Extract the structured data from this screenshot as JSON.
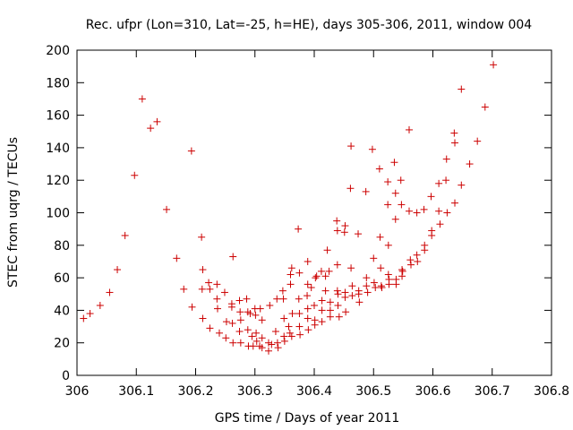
{
  "chart_data": {
    "type": "scatter",
    "title": "Rec. ufpr (Lon=310, Lat=-25, h=HE), days 305-306, 2011, window 004",
    "xlabel": "GPS time / Days of year 2011",
    "ylabel": "STEC from uqrg / TECUs",
    "xlim": [
      306,
      306.8
    ],
    "ylim": [
      0,
      200
    ],
    "xticks": [
      306,
      306.1,
      306.2,
      306.3,
      306.4,
      306.5,
      306.6,
      306.7,
      306.8
    ],
    "xtick_labels": [
      "306",
      "306.1",
      "306.2",
      "306.3",
      "306.4",
      "306.5",
      "306.6",
      "306.7",
      "306.8"
    ],
    "yticks": [
      0,
      20,
      40,
      60,
      80,
      100,
      120,
      140,
      160,
      180,
      200
    ],
    "ytick_labels": [
      "0",
      "20",
      "40",
      "60",
      "80",
      "100",
      "120",
      "140",
      "160",
      "180",
      "200"
    ],
    "grid": false,
    "marker": "+",
    "marker_color": "#cc0000",
    "series": [
      {
        "name": "",
        "points": [
          [
            306.011,
            35
          ],
          [
            306.022,
            38
          ],
          [
            306.039,
            43
          ],
          [
            306.055,
            51
          ],
          [
            306.068,
            65
          ],
          [
            306.081,
            86
          ],
          [
            306.097,
            123
          ],
          [
            306.11,
            170
          ],
          [
            306.124,
            152
          ],
          [
            306.135,
            156
          ],
          [
            306.151,
            102
          ],
          [
            306.168,
            72
          ],
          [
            306.18,
            53
          ],
          [
            306.194,
            42
          ],
          [
            306.193,
            138
          ],
          [
            306.21,
            85
          ],
          [
            306.212,
            65
          ],
          [
            306.211,
            53
          ],
          [
            306.212,
            35
          ],
          [
            306.222,
            57
          ],
          [
            306.224,
            29
          ],
          [
            306.224,
            53
          ],
          [
            306.236,
            56
          ],
          [
            306.236,
            47
          ],
          [
            306.237,
            41
          ],
          [
            306.24,
            26
          ],
          [
            306.249,
            51
          ],
          [
            306.252,
            33
          ],
          [
            306.251,
            23
          ],
          [
            306.261,
            44
          ],
          [
            306.261,
            42
          ],
          [
            306.262,
            32
          ],
          [
            306.263,
            73
          ],
          [
            306.263,
            20
          ],
          [
            306.275,
            39
          ],
          [
            306.274,
            46
          ],
          [
            306.274,
            27
          ],
          [
            306.276,
            34
          ],
          [
            306.276,
            20
          ],
          [
            306.286,
            47
          ],
          [
            306.288,
            39
          ],
          [
            306.288,
            28
          ],
          [
            306.289,
            18
          ],
          [
            306.292,
            38
          ],
          [
            306.295,
            24
          ],
          [
            306.297,
            18
          ],
          [
            306.3,
            41
          ],
          [
            306.301,
            37
          ],
          [
            306.302,
            26
          ],
          [
            306.303,
            21
          ],
          [
            306.308,
            18
          ],
          [
            306.309,
            41
          ],
          [
            306.312,
            34
          ],
          [
            306.312,
            23
          ],
          [
            306.312,
            17
          ],
          [
            306.323,
            20
          ],
          [
            306.323,
            15
          ],
          [
            306.325,
            43
          ],
          [
            306.328,
            19
          ],
          [
            306.335,
            27
          ],
          [
            306.337,
            47
          ],
          [
            306.338,
            20
          ],
          [
            306.339,
            17
          ],
          [
            306.347,
            52
          ],
          [
            306.348,
            47
          ],
          [
            306.349,
            35
          ],
          [
            306.349,
            24
          ],
          [
            306.35,
            21
          ],
          [
            306.357,
            30
          ],
          [
            306.359,
            26
          ],
          [
            306.36,
            62
          ],
          [
            306.36,
            56
          ],
          [
            306.362,
            66
          ],
          [
            306.362,
            24
          ],
          [
            306.363,
            38
          ],
          [
            306.375,
            63
          ],
          [
            306.373,
            90
          ],
          [
            306.374,
            47
          ],
          [
            306.375,
            38
          ],
          [
            306.375,
            30
          ],
          [
            306.376,
            25
          ],
          [
            306.389,
            70
          ],
          [
            306.389,
            56
          ],
          [
            306.388,
            49
          ],
          [
            306.389,
            41
          ],
          [
            306.389,
            35
          ],
          [
            306.39,
            28
          ],
          [
            306.395,
            54
          ],
          [
            306.4,
            43
          ],
          [
            306.401,
            34
          ],
          [
            306.401,
            31
          ],
          [
            306.402,
            60
          ],
          [
            306.404,
            61
          ],
          [
            306.412,
            64
          ],
          [
            306.413,
            46
          ],
          [
            306.413,
            40
          ],
          [
            306.413,
            33
          ],
          [
            306.419,
            61
          ],
          [
            306.419,
            52
          ],
          [
            306.422,
            77
          ],
          [
            306.425,
            64
          ],
          [
            306.427,
            45
          ],
          [
            306.427,
            40
          ],
          [
            306.427,
            36
          ],
          [
            306.438,
            95
          ],
          [
            306.439,
            89
          ],
          [
            306.439,
            68
          ],
          [
            306.439,
            52
          ],
          [
            306.44,
            50
          ],
          [
            306.44,
            43
          ],
          [
            306.442,
            36
          ],
          [
            306.451,
            88
          ],
          [
            306.452,
            92
          ],
          [
            306.452,
            51
          ],
          [
            306.452,
            48
          ],
          [
            306.453,
            39
          ],
          [
            306.462,
            141
          ],
          [
            306.461,
            115
          ],
          [
            306.462,
            66
          ],
          [
            306.464,
            55
          ],
          [
            306.464,
            49
          ],
          [
            306.474,
            87
          ],
          [
            306.475,
            52
          ],
          [
            306.475,
            50
          ],
          [
            306.476,
            45
          ],
          [
            306.487,
            113
          ],
          [
            306.488,
            60
          ],
          [
            306.488,
            55
          ],
          [
            306.49,
            51
          ],
          [
            306.498,
            139
          ],
          [
            306.5,
            72
          ],
          [
            306.501,
            57
          ],
          [
            306.503,
            54
          ],
          [
            306.51,
            127
          ],
          [
            306.511,
            85
          ],
          [
            306.512,
            66
          ],
          [
            306.513,
            55
          ],
          [
            306.514,
            54
          ],
          [
            306.524,
            119
          ],
          [
            306.524,
            105
          ],
          [
            306.525,
            80
          ],
          [
            306.525,
            62
          ],
          [
            306.526,
            59
          ],
          [
            306.526,
            56
          ],
          [
            306.535,
            131
          ],
          [
            306.537,
            96
          ],
          [
            306.537,
            112
          ],
          [
            306.538,
            56
          ],
          [
            306.538,
            59
          ],
          [
            306.546,
            120
          ],
          [
            306.547,
            105
          ],
          [
            306.548,
            65
          ],
          [
            306.548,
            61
          ],
          [
            306.549,
            64
          ],
          [
            306.56,
            151
          ],
          [
            306.56,
            101
          ],
          [
            306.562,
            71
          ],
          [
            306.563,
            68
          ],
          [
            306.573,
            100
          ],
          [
            306.573,
            74
          ],
          [
            306.574,
            70
          ],
          [
            306.585,
            102
          ],
          [
            306.586,
            80
          ],
          [
            306.586,
            77
          ],
          [
            306.597,
            110
          ],
          [
            306.598,
            89
          ],
          [
            306.598,
            86
          ],
          [
            306.61,
            118
          ],
          [
            306.61,
            101
          ],
          [
            306.612,
            93
          ],
          [
            306.623,
            133
          ],
          [
            306.622,
            120
          ],
          [
            306.624,
            100
          ],
          [
            306.636,
            149
          ],
          [
            306.637,
            143
          ],
          [
            306.637,
            106
          ],
          [
            306.648,
            176
          ],
          [
            306.648,
            117
          ],
          [
            306.662,
            130
          ],
          [
            306.675,
            144
          ],
          [
            306.688,
            165
          ],
          [
            306.702,
            191
          ]
        ]
      }
    ]
  }
}
